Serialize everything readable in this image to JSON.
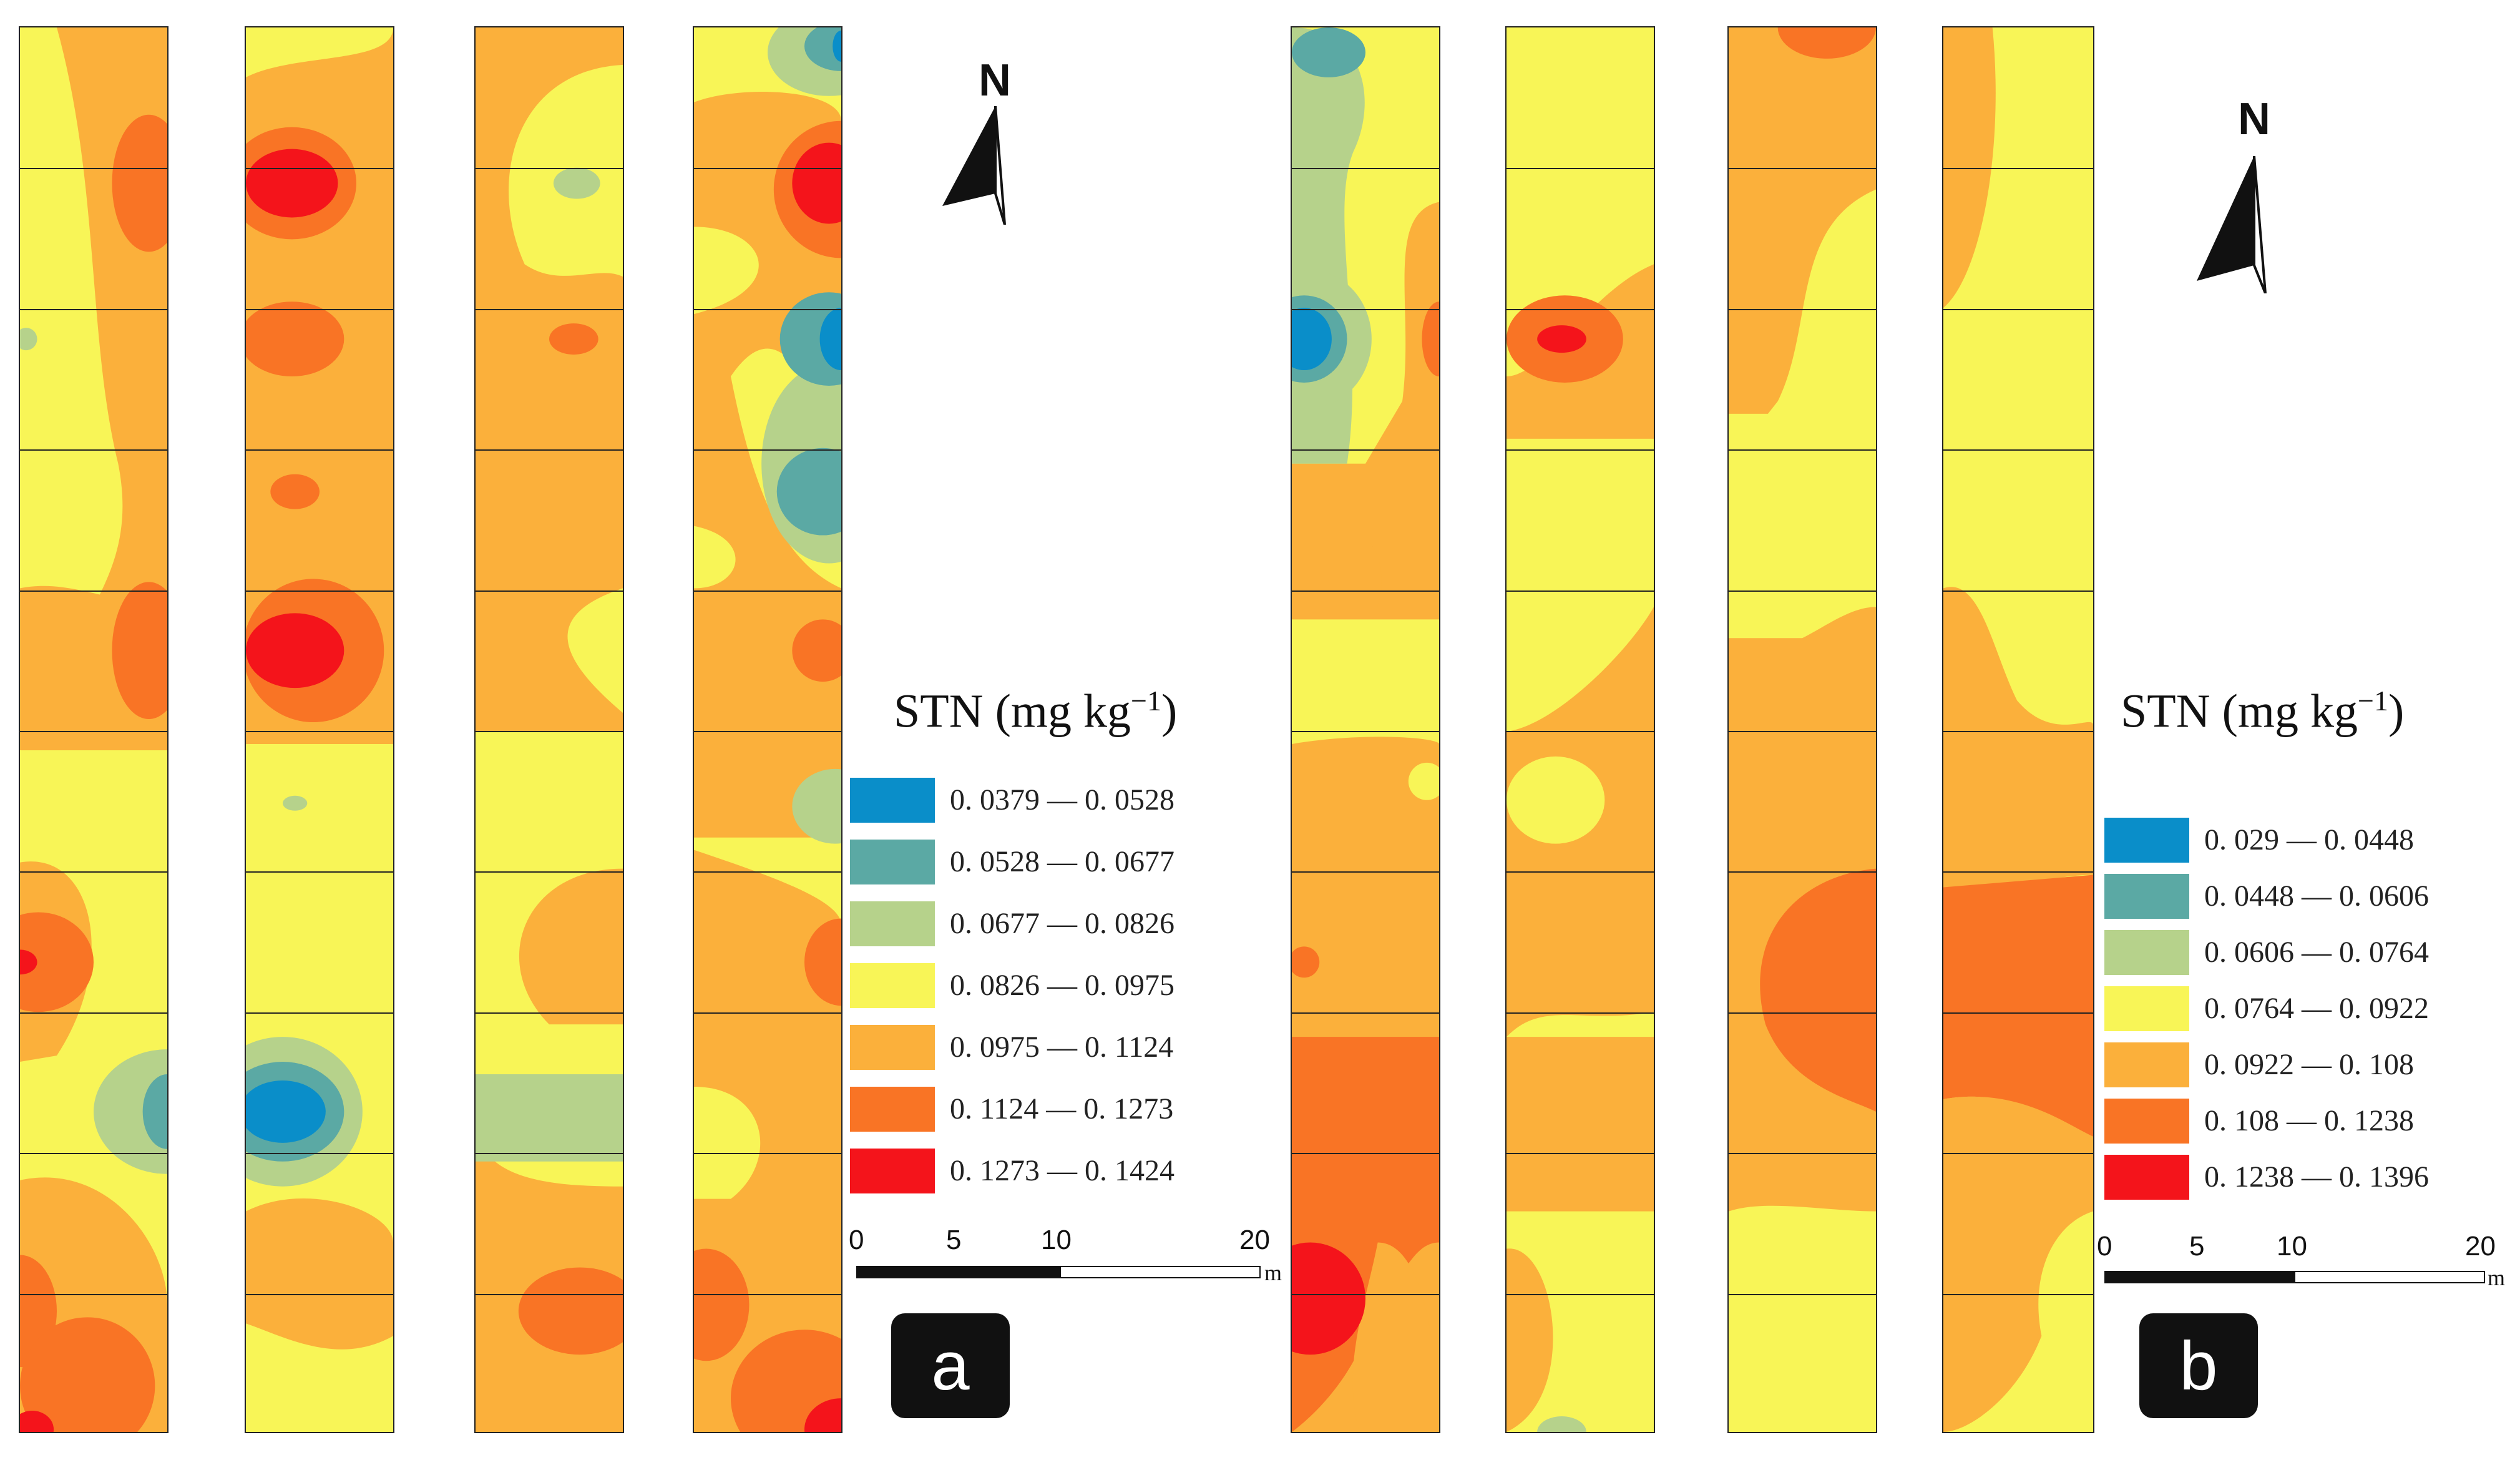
{
  "colors": {
    "c1": "#0a8ec9",
    "c2": "#5ba9a4",
    "c3": "#b6d28b",
    "c4": "#f8f557",
    "c5": "#fbb03b",
    "c6": "#f97425",
    "c7": "#f4141b"
  },
  "panel_a": {
    "label": "a",
    "north": "N",
    "legend_title": "STN (mg kg",
    "legend_superscript": "−1",
    "legend_title_close": ")",
    "classes": [
      {
        "range": "0. 0379 — 0. 0528",
        "color": "#0a8ec9"
      },
      {
        "range": "0. 0528 — 0. 0677",
        "color": "#5ba9a4"
      },
      {
        "range": "0. 0677 — 0. 0826",
        "color": "#b6d28b"
      },
      {
        "range": "0. 0826 — 0. 0975",
        "color": "#f8f557"
      },
      {
        "range": "0. 0975 — 0. 1124",
        "color": "#fbb03b"
      },
      {
        "range": "0. 1124 — 0. 1273",
        "color": "#f97425"
      },
      {
        "range": "0. 1273 — 0. 1424",
        "color": "#f4141b"
      }
    ],
    "scale": {
      "ticks": [
        "0",
        "5",
        "10",
        "20"
      ],
      "unit": "m"
    }
  },
  "panel_b": {
    "label": "b",
    "north": "N",
    "legend_title": "STN (mg kg",
    "legend_superscript": "−1",
    "legend_title_close": ")",
    "classes": [
      {
        "range": "0. 029 — 0. 0448",
        "color": "#0a8ec9"
      },
      {
        "range": "0. 0448 — 0. 0606",
        "color": "#5ba9a4"
      },
      {
        "range": "0. 0606 — 0. 0764",
        "color": "#b6d28b"
      },
      {
        "range": "0. 0764 — 0. 0922",
        "color": "#f8f557"
      },
      {
        "range": "0. 0922 — 0. 108",
        "color": "#fbb03b"
      },
      {
        "range": "0. 108 — 0. 1238",
        "color": "#f97425"
      },
      {
        "range": "0. 1238 — 0. 1396",
        "color": "#f4141b"
      }
    ],
    "scale": {
      "ticks": [
        "0",
        "5",
        "10",
        "20"
      ],
      "unit": "m"
    }
  }
}
